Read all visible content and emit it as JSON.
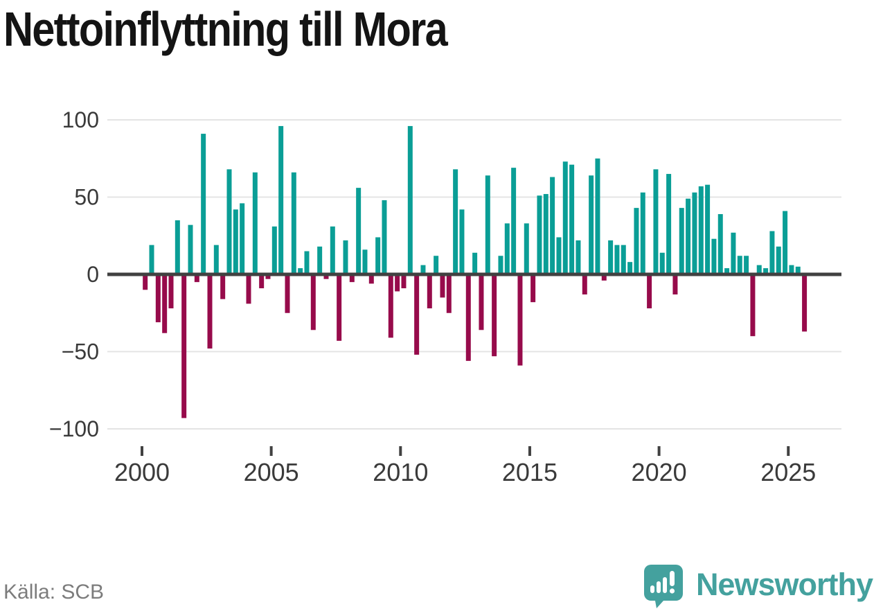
{
  "page": {
    "title": "Nettoinflyttning till Mora",
    "source": "Källa: SCB",
    "brand": "Newsworthy"
  },
  "chart_data": {
    "type": "bar",
    "title": "Nettoinflyttning till Mora",
    "frequency": "quarterly",
    "period_start": "2000 Q1",
    "period_end": "2025 Q3",
    "xlabel": "",
    "ylabel": "",
    "ylim": [
      -100,
      100
    ],
    "grid": "horizontal",
    "x_tick_labels": [
      "2000",
      "2005",
      "2010",
      "2015",
      "2020",
      "2025"
    ],
    "x_tick_years": [
      2000,
      2005,
      2010,
      2015,
      2020,
      2025
    ],
    "y_tick_labels": [
      "100",
      "50",
      "0",
      "−50",
      "−100"
    ],
    "y_tick_values": [
      100,
      50,
      0,
      -50,
      -100
    ],
    "colors": {
      "positive": "#0a9e96",
      "negative": "#970b4b",
      "axis": "#414141",
      "grid": "#e4e4e4",
      "tick_label": "#3a3a3a",
      "title": "#141414",
      "source_text": "#7c7c7c",
      "brand": "#44a19e"
    },
    "values": [
      -10,
      19,
      -31,
      -38,
      -22,
      35,
      -93,
      32,
      -5,
      91,
      -48,
      19,
      -16,
      68,
      42,
      46,
      -19,
      66,
      -9,
      -3,
      31,
      96,
      -25,
      66,
      4,
      15,
      -36,
      18,
      -3,
      31,
      -43,
      22,
      -5,
      56,
      16,
      -6,
      24,
      48,
      -41,
      -11,
      -9,
      96,
      -52,
      6,
      -22,
      12,
      -15,
      -25,
      68,
      42,
      -56,
      14,
      -36,
      64,
      -53,
      12,
      33,
      69,
      -59,
      33,
      -18,
      51,
      52,
      63,
      24,
      73,
      71,
      22,
      -13,
      64,
      75,
      -4,
      22,
      19,
      19,
      8,
      43,
      53,
      -22,
      68,
      14,
      65,
      -13,
      43,
      49,
      53,
      57,
      58,
      23,
      39,
      4,
      27,
      12,
      12,
      -40,
      6,
      4,
      28,
      18,
      41,
      6,
      5,
      -37
    ]
  },
  "logo": {
    "icon": "newsworthy-bubble-chart-icon"
  }
}
